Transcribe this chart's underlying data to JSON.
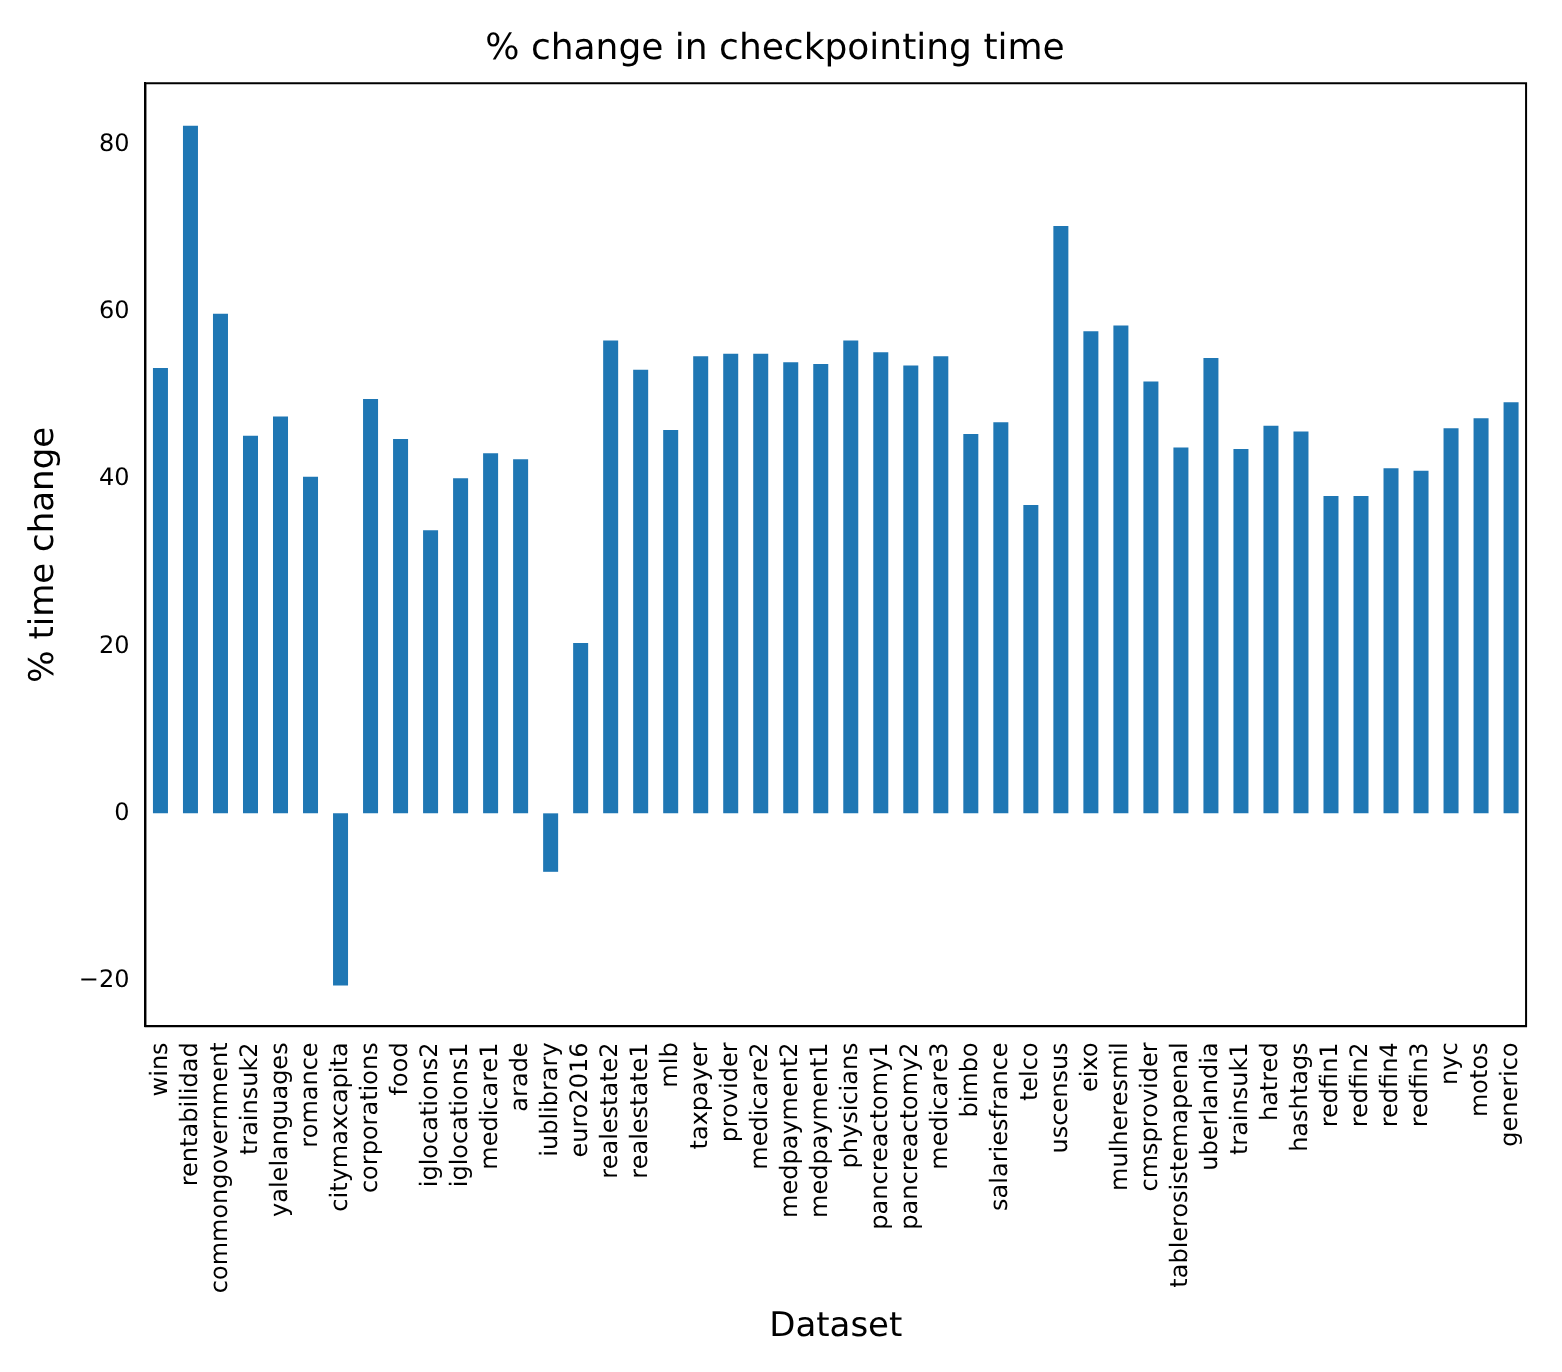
{
  "chart_data": {
    "type": "bar",
    "title": "% change in checkpointing time",
    "xlabel": "Dataset",
    "ylabel": "% time change",
    "categories": [
      "wins",
      "rentabilidad",
      "commongovernment",
      "trainsuk2",
      "yalelanguages",
      "romance",
      "citymaxcapita",
      "corporations",
      "food",
      "iglocations2",
      "iglocations1",
      "medicare1",
      "arade",
      "iublibrary",
      "euro2016",
      "realestate2",
      "realestate1",
      "mlb",
      "taxpayer",
      "provider",
      "medicare2",
      "medpayment2",
      "medpayment1",
      "physicians",
      "pancreactomy1",
      "pancreactomy2",
      "medicare3",
      "bimbo",
      "salariesfrance",
      "telco",
      "uscensus",
      "eixo",
      "mulheresmil",
      "cmsprovider",
      "tablerosistemapenal",
      "uberlandia",
      "trainsuk1",
      "hatred",
      "hashtags",
      "redfin1",
      "redfin2",
      "redfin4",
      "redfin3",
      "nyc",
      "motos",
      "generico"
    ],
    "values": [
      53.3,
      82.3,
      59.8,
      45.2,
      47.5,
      40.3,
      -20.6,
      49.6,
      44.8,
      33.9,
      40.1,
      43.1,
      42.4,
      -7.0,
      20.4,
      56.6,
      53.1,
      45.9,
      54.7,
      55.0,
      55.0,
      54.0,
      53.8,
      56.6,
      55.2,
      53.6,
      54.7,
      45.4,
      46.8,
      36.9,
      70.3,
      57.7,
      58.4,
      51.7,
      43.8,
      54.5,
      43.6,
      46.4,
      45.7,
      38.0,
      38.0,
      41.3,
      41.0,
      46.1,
      47.3,
      49.2
    ],
    "color": "#1f77b4",
    "ylim": [
      -25.5,
      87.4
    ],
    "yticks": [
      {
        "value": -20,
        "label": "−20"
      },
      0,
      20,
      40,
      60,
      80
    ],
    "grid": false,
    "legend": false
  }
}
